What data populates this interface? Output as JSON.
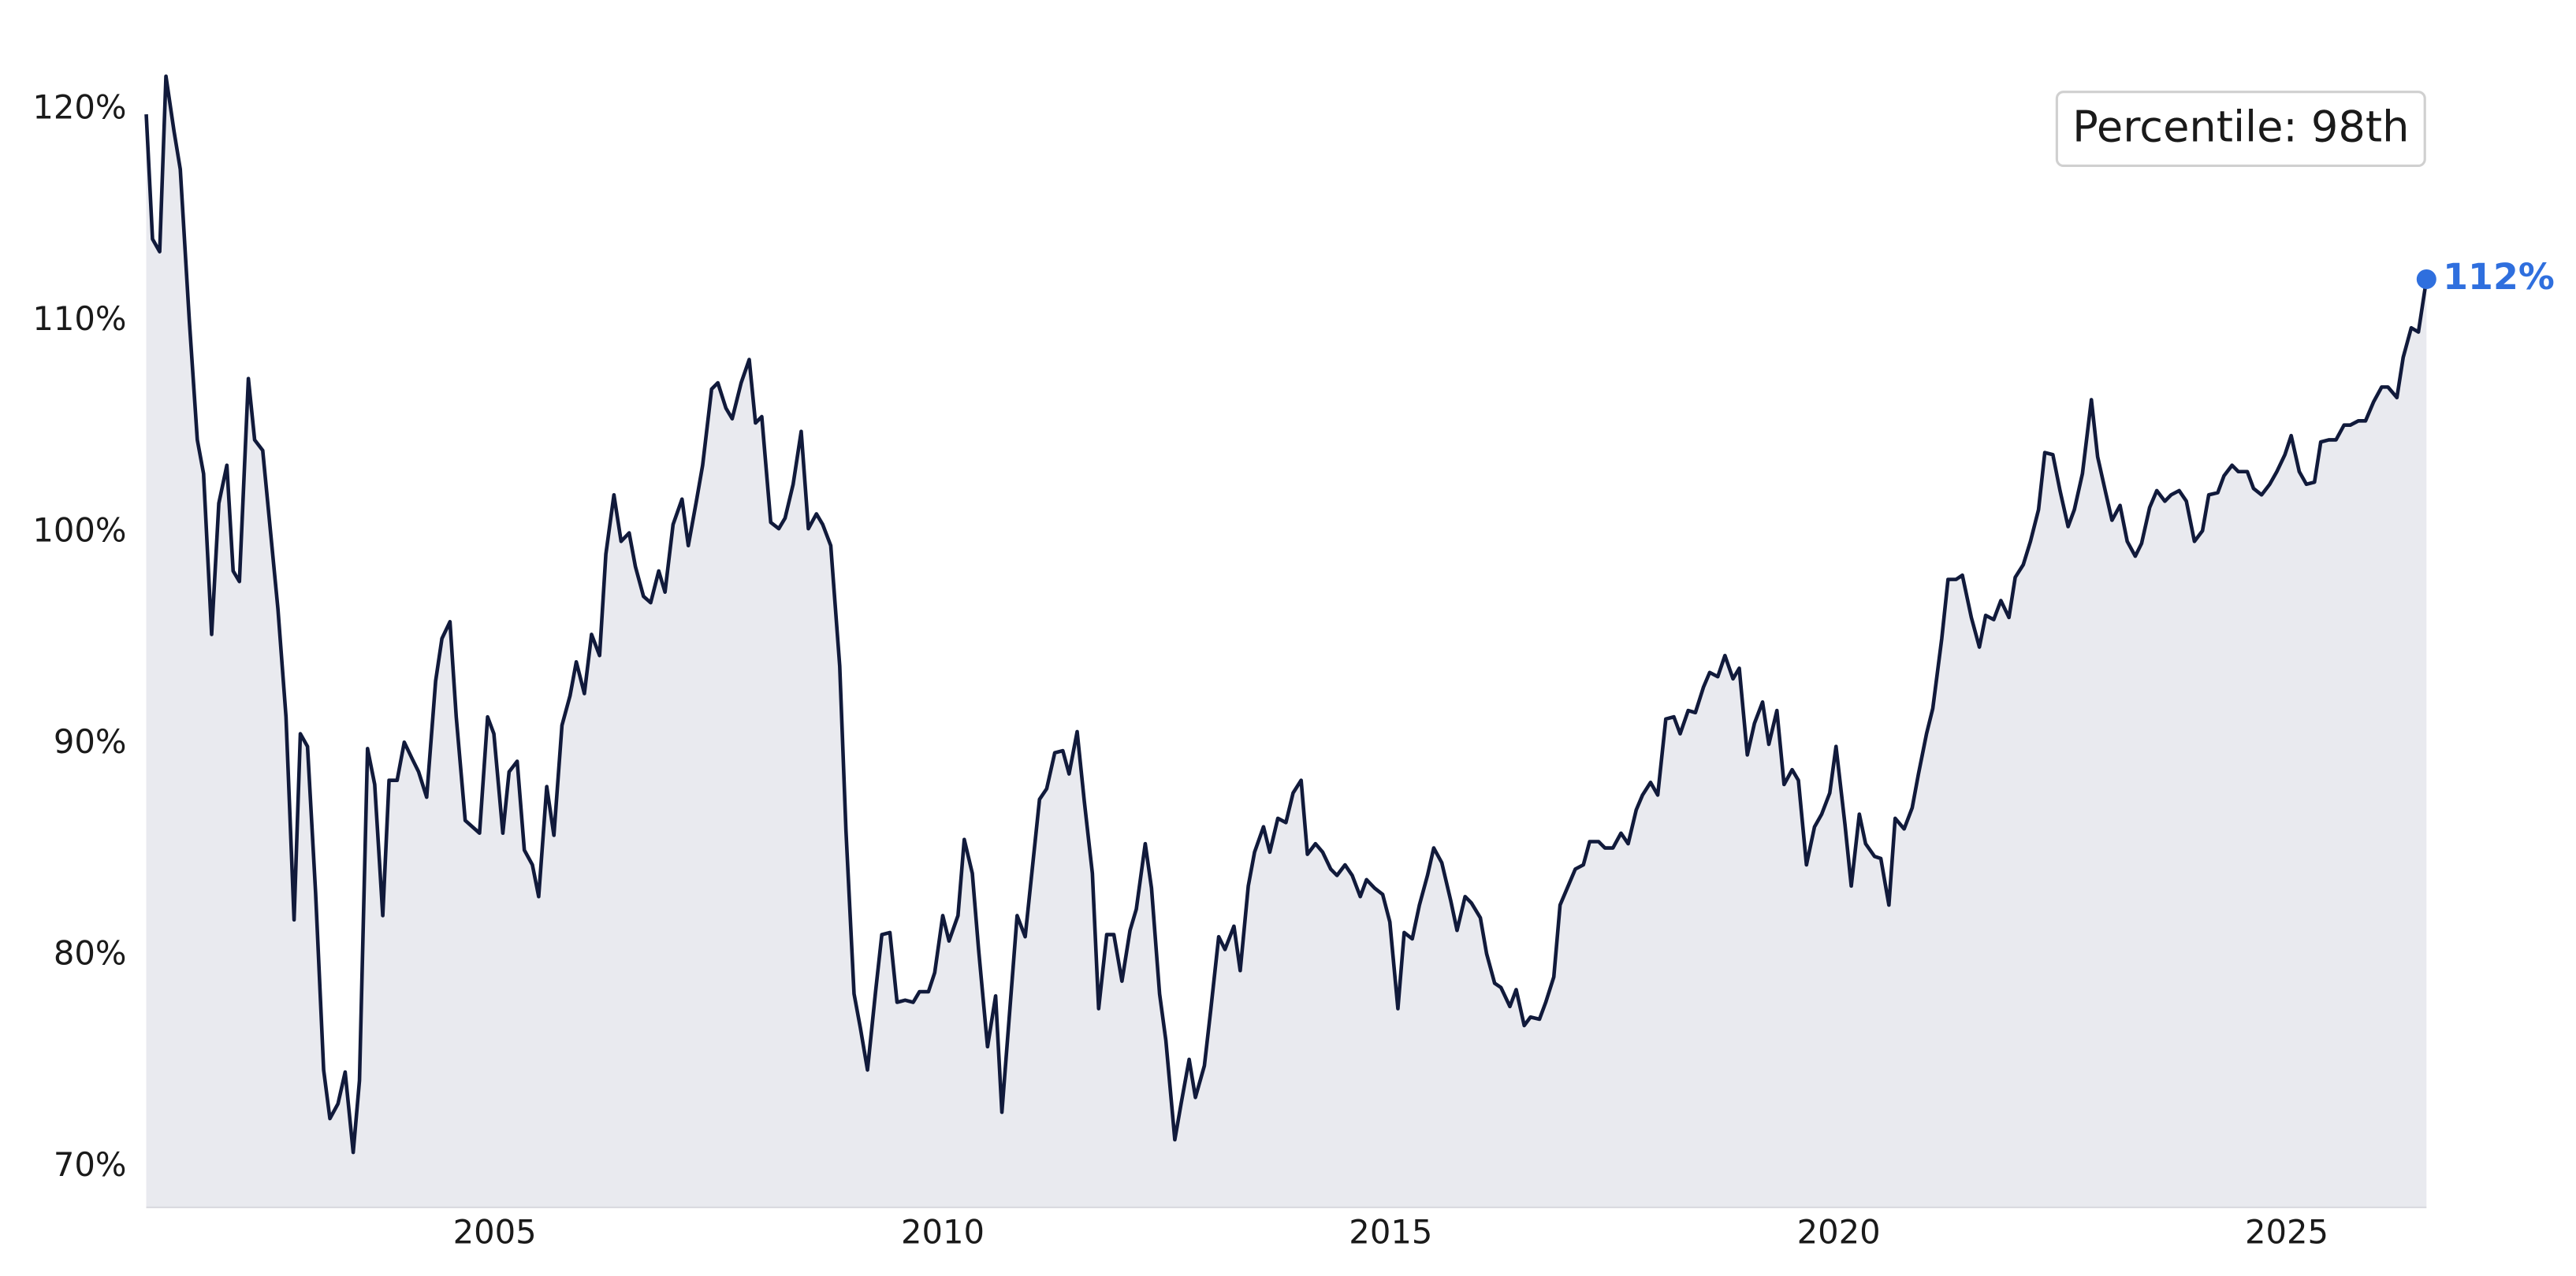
{
  "chart_data": {
    "type": "area-line",
    "x": [
      2001.11,
      2001.18,
      2001.26,
      2001.33,
      2001.42,
      2001.49,
      2001.59,
      2001.68,
      2001.75,
      2001.84,
      2001.92,
      2002.01,
      2002.08,
      2002.15,
      2002.25,
      2002.32,
      2002.41,
      2002.58,
      2002.67,
      2002.76,
      2002.83,
      2002.91,
      2003.0,
      2003.09,
      2003.16,
      2003.25,
      2003.33,
      2003.42,
      2003.49,
      2003.58,
      2003.66,
      2003.75,
      2003.82,
      2003.91,
      2003.99,
      2004.08,
      2004.15,
      2004.24,
      2004.34,
      2004.41,
      2004.5,
      2004.57,
      2004.67,
      2004.83,
      2004.92,
      2004.99,
      2005.09,
      2005.16,
      2005.25,
      2005.33,
      2005.42,
      2005.49,
      2005.58,
      2005.66,
      2005.75,
      2005.84,
      2005.91,
      2006.0,
      2006.08,
      2006.17,
      2006.24,
      2006.33,
      2006.41,
      2006.5,
      2006.57,
      2006.66,
      2006.74,
      2006.83,
      2006.9,
      2006.99,
      2007.09,
      2007.16,
      2007.25,
      2007.32,
      2007.42,
      2007.49,
      2007.58,
      2007.65,
      2007.75,
      2007.84,
      2007.91,
      2007.98,
      2008.08,
      2008.17,
      2008.24,
      2008.33,
      2008.42,
      2008.5,
      2008.59,
      2008.66,
      2008.75,
      2008.85,
      2008.92,
      2009.01,
      2009.08,
      2009.16,
      2009.25,
      2009.32,
      2009.41,
      2009.49,
      2009.58,
      2009.67,
      2009.74,
      2009.84,
      2009.91,
      2010.0,
      2010.07,
      2010.17,
      2010.24,
      2010.33,
      2010.4,
      2010.5,
      2010.59,
      2010.66,
      2010.83,
      2010.92,
      2011.08,
      2011.16,
      2011.25,
      2011.34,
      2011.41,
      2011.5,
      2011.58,
      2011.67,
      2011.74,
      2011.83,
      2011.91,
      2012.0,
      2012.09,
      2012.16,
      2012.26,
      2012.33,
      2012.42,
      2012.49,
      2012.59,
      2012.66,
      2012.75,
      2012.82,
      2012.92,
      2012.99,
      2013.08,
      2013.15,
      2013.25,
      2013.32,
      2013.41,
      2013.48,
      2013.58,
      2013.65,
      2013.74,
      2013.83,
      2013.91,
      2014.0,
      2014.07,
      2014.16,
      2014.24,
      2014.33,
      2014.4,
      2014.49,
      2014.57,
      2014.66,
      2014.73,
      2014.82,
      2014.91,
      2014.99,
      2015.08,
      2015.15,
      2015.24,
      2015.32,
      2015.41,
      2015.48,
      2015.57,
      2015.67,
      2015.74,
      2015.83,
      2015.9,
      2016.0,
      2016.07,
      2016.16,
      2016.23,
      2016.33,
      2016.4,
      2016.49,
      2016.56,
      2016.66,
      2016.73,
      2016.82,
      2016.89,
      2016.99,
      2017.06,
      2017.15,
      2017.22,
      2017.32,
      2017.39,
      2017.48,
      2017.57,
      2017.65,
      2017.74,
      2017.81,
      2017.9,
      2017.98,
      2018.07,
      2018.16,
      2018.23,
      2018.32,
      2018.4,
      2018.49,
      2018.56,
      2018.65,
      2018.73,
      2018.82,
      2018.89,
      2018.98,
      2019.06,
      2019.15,
      2019.22,
      2019.31,
      2019.39,
      2019.48,
      2019.55,
      2019.64,
      2019.73,
      2019.81,
      2019.9,
      2019.97,
      2020.07,
      2020.14,
      2020.23,
      2020.3,
      2020.4,
      2020.47,
      2020.56,
      2020.63,
      2020.73,
      2020.82,
      2020.89,
      2020.98,
      2021.05,
      2021.15,
      2021.22,
      2021.31,
      2021.38,
      2021.48,
      2021.57,
      2021.64,
      2021.73,
      2021.81,
      2021.9,
      2021.97,
      2022.06,
      2022.14,
      2022.23,
      2022.3,
      2022.39,
      2022.47,
      2022.56,
      2022.63,
      2022.72,
      2022.82,
      2022.89,
      2022.98,
      2023.05,
      2023.14,
      2023.22,
      2023.31,
      2023.38,
      2023.47,
      2023.55,
      2023.64,
      2023.71,
      2023.8,
      2023.88,
      2023.97,
      2024.06,
      2024.13,
      2024.23,
      2024.3,
      2024.39,
      2024.46,
      2024.56,
      2024.63,
      2024.72,
      2024.81,
      2024.89,
      2024.98,
      2025.05,
      2025.14,
      2025.22,
      2025.31,
      2025.38,
      2025.47,
      2025.55,
      2025.64,
      2025.71,
      2025.8,
      2025.88,
      2025.97,
      2026.06,
      2026.13,
      2026.23,
      2026.3,
      2026.39,
      2026.47,
      2026.56
    ],
    "series": [
      {
        "color": "#111a3b",
        "fill_color": "#e9eaef",
        "values": [
          119.8,
          113.9,
          113.3,
          121.6,
          119,
          117.2,
          110.1,
          104.4,
          102.8,
          95.2,
          101.4,
          103.2,
          98.2,
          97.7,
          107.3,
          104.4,
          103.9,
          96.4,
          91.3,
          81.7,
          90.5,
          89.9,
          83,
          74.6,
          72.3,
          73,
          74.5,
          70.7,
          74.1,
          89.8,
          88.1,
          81.9,
          88.3,
          88.3,
          90.1,
          89.3,
          88.7,
          87.5,
          93,
          95,
          95.8,
          91.3,
          86.4,
          85.8,
          91.3,
          90.5,
          85.8,
          88.7,
          89.2,
          85,
          84.3,
          82.8,
          88,
          85.7,
          90.9,
          92.3,
          93.9,
          92.4,
          95.2,
          94.2,
          99,
          101.8,
          99.6,
          100,
          98.4,
          97,
          96.7,
          98.2,
          97.2,
          100.4,
          101.6,
          99.4,
          101.5,
          103.2,
          106.8,
          107.1,
          105.9,
          105.4,
          107.1,
          108.2,
          105.2,
          105.5,
          100.5,
          100.2,
          100.7,
          102.3,
          104.8,
          100.2,
          100.9,
          100.4,
          99.4,
          93.7,
          85.9,
          78.2,
          76.6,
          74.6,
          78.3,
          81,
          81.1,
          77.8,
          77.9,
          77.8,
          78.3,
          78.3,
          79.2,
          81.9,
          80.7,
          81.9,
          85.5,
          83.9,
          80.3,
          75.7,
          78.1,
          72.6,
          81.9,
          80.9,
          87.4,
          87.9,
          89.6,
          89.7,
          88.6,
          90.6,
          87.3,
          83.9,
          77.5,
          81,
          81,
          78.8,
          81.2,
          82.2,
          85.3,
          83.2,
          78.2,
          76,
          71.3,
          73,
          75.1,
          73.3,
          74.8,
          77.4,
          80.9,
          80.3,
          81.4,
          79.3,
          83.3,
          84.9,
          86.1,
          84.9,
          86.5,
          86.3,
          87.7,
          88.3,
          84.8,
          85.3,
          84.9,
          84.1,
          83.8,
          84.3,
          83.8,
          82.8,
          83.6,
          83.2,
          82.9,
          81.6,
          77.5,
          81.1,
          80.8,
          82.4,
          83.8,
          85.1,
          84.4,
          82.6,
          81.2,
          82.8,
          82.5,
          81.8,
          80.1,
          78.7,
          78.5,
          77.6,
          78.4,
          76.7,
          77.1,
          77,
          77.8,
          79,
          82.4,
          83.4,
          84.1,
          84.3,
          85.4,
          85.4,
          85.1,
          85.1,
          85.8,
          85.3,
          86.9,
          87.6,
          88.2,
          87.6,
          91.2,
          91.3,
          90.5,
          91.6,
          91.5,
          92.7,
          93.4,
          93.2,
          94.2,
          93.1,
          93.6,
          89.5,
          91,
          92,
          90,
          91.6,
          88.1,
          88.8,
          88.3,
          84.3,
          86.1,
          86.7,
          87.7,
          89.9,
          86.2,
          83.3,
          86.7,
          85.3,
          84.7,
          84.6,
          82.4,
          86.5,
          86,
          87,
          88.6,
          90.5,
          91.7,
          95,
          97.8,
          97.8,
          98,
          96,
          94.6,
          96.1,
          95.9,
          96.8,
          96,
          97.9,
          98.5,
          99.6,
          101.1,
          103.8,
          103.7,
          102,
          100.3,
          101.1,
          102.8,
          106.3,
          103.6,
          101.9,
          100.6,
          101.3,
          99.6,
          98.9,
          99.5,
          101.2,
          102,
          101.5,
          101.8,
          102,
          101.5,
          99.6,
          100.1,
          101.8,
          101.9,
          102.7,
          103.2,
          102.9,
          102.9,
          102.1,
          101.8,
          102.3,
          102.9,
          103.7,
          104.6,
          102.9,
          102.3,
          102.4,
          104.3,
          104.4,
          104.4,
          105.1,
          105.1,
          105.3,
          105.3,
          106.2,
          106.9,
          106.9,
          106.4,
          108.3,
          109.7,
          109.5,
          112
        ]
      }
    ],
    "end_label": {
      "value": 112,
      "label": "112%",
      "color": "#2f6fde"
    },
    "annotation_box": "Percentile: 98th",
    "xlim": [
      2001.11,
      2026.56
    ],
    "xticks": [
      2005,
      2010,
      2015,
      2020,
      2025
    ],
    "ylim": [
      68.1,
      123
    ],
    "yticks": [
      {
        "value": 70,
        "label": "70%"
      },
      {
        "value": 80,
        "label": "80%"
      },
      {
        "value": 90,
        "label": "90%"
      },
      {
        "value": 100,
        "label": "100%"
      },
      {
        "value": 110,
        "label": "110%"
      },
      {
        "value": 120,
        "label": "120%"
      }
    ],
    "grid": false
  }
}
